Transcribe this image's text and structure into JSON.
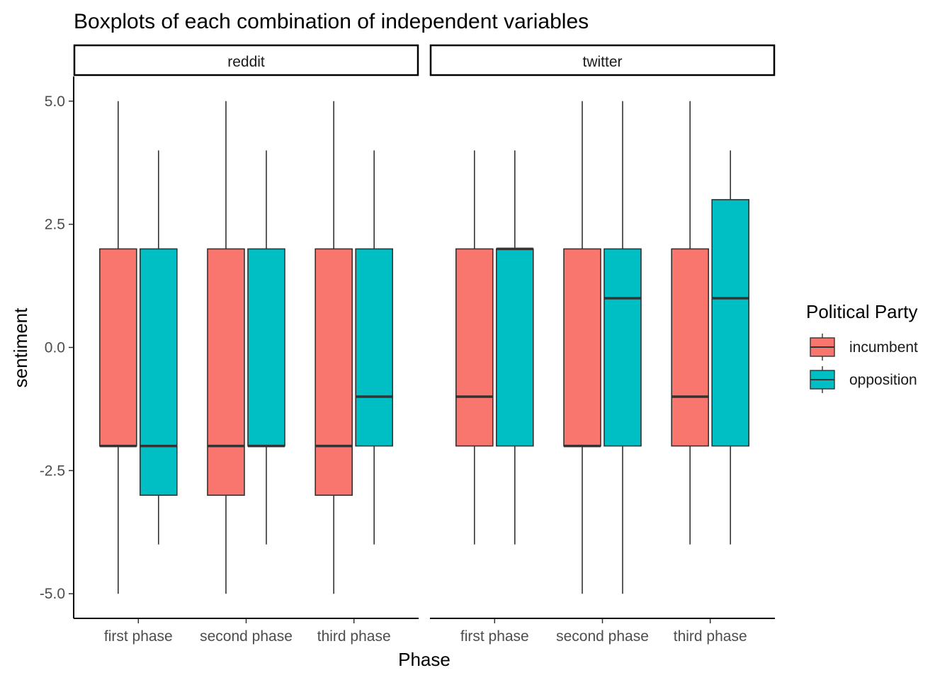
{
  "chart_data": {
    "type": "boxplot",
    "title": "Boxplots of each combination of independent variables",
    "xlabel": "Phase",
    "ylabel": "sentiment",
    "ylim": [
      -5.5,
      5.5
    ],
    "yticks": [
      {
        "value": 5,
        "label": "5.0"
      },
      {
        "value": 2.5,
        "label": "2.5"
      },
      {
        "value": 0,
        "label": "0.0"
      },
      {
        "value": -2.5,
        "label": "-2.5"
      },
      {
        "value": -5,
        "label": "-5.0"
      }
    ],
    "categories": [
      "first phase",
      "second phase",
      "third phase"
    ],
    "legend": {
      "title": "Political Party",
      "position": "right",
      "items": [
        {
          "name": "incumbent",
          "color": "#F8766D"
        },
        {
          "name": "opposition",
          "color": "#00BFC4"
        }
      ]
    },
    "panels": [
      {
        "label": "reddit",
        "boxes": [
          {
            "category": "first phase",
            "group": "incumbent",
            "min": -5,
            "q1": -2,
            "median": -2,
            "q3": 2,
            "max": 5
          },
          {
            "category": "first phase",
            "group": "opposition",
            "min": -4,
            "q1": -3,
            "median": -2,
            "q3": 2,
            "max": 4
          },
          {
            "category": "second phase",
            "group": "incumbent",
            "min": -5,
            "q1": -3,
            "median": -2,
            "q3": 2,
            "max": 5
          },
          {
            "category": "second phase",
            "group": "opposition",
            "min": -4,
            "q1": -2,
            "median": -2,
            "q3": 2,
            "max": 4
          },
          {
            "category": "third phase",
            "group": "incumbent",
            "min": -5,
            "q1": -3,
            "median": -2,
            "q3": 2,
            "max": 5
          },
          {
            "category": "third phase",
            "group": "opposition",
            "min": -4,
            "q1": -2,
            "median": -1,
            "q3": 2,
            "max": 4
          }
        ]
      },
      {
        "label": "twitter",
        "boxes": [
          {
            "category": "first phase",
            "group": "incumbent",
            "min": -4,
            "q1": -2,
            "median": -1,
            "q3": 2,
            "max": 4
          },
          {
            "category": "first phase",
            "group": "opposition",
            "min": -4,
            "q1": -2,
            "median": 2,
            "q3": 2,
            "max": 4
          },
          {
            "category": "second phase",
            "group": "incumbent",
            "min": -5,
            "q1": -2,
            "median": -2,
            "q3": 2,
            "max": 5
          },
          {
            "category": "second phase",
            "group": "opposition",
            "min": -5,
            "q1": -2,
            "median": 1,
            "q3": 2,
            "max": 5
          },
          {
            "category": "third phase",
            "group": "incumbent",
            "min": -4,
            "q1": -2,
            "median": -1,
            "q3": 2,
            "max": 5
          },
          {
            "category": "third phase",
            "group": "opposition",
            "min": -4,
            "q1": -2,
            "median": 1,
            "q3": 3,
            "max": 4
          }
        ]
      }
    ]
  }
}
